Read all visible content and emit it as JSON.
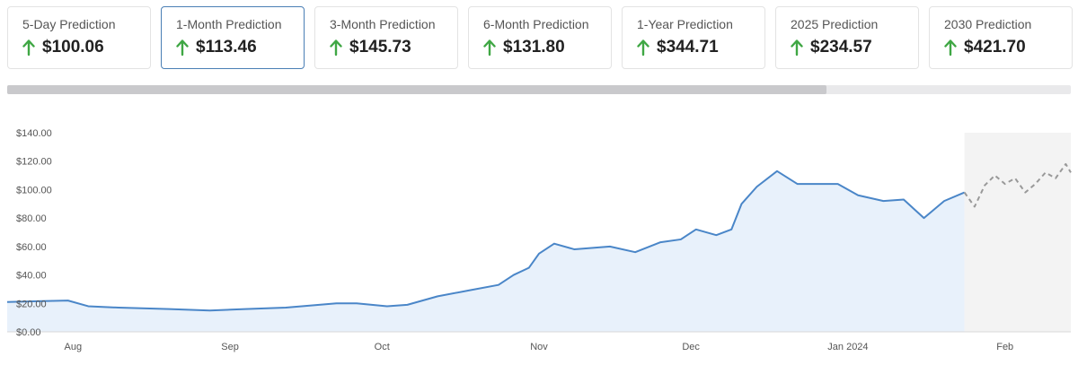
{
  "predictions": [
    {
      "label": "5-Day Prediction",
      "value": "$100.06",
      "direction": "up"
    },
    {
      "label": "1-Month Prediction",
      "value": "$113.46",
      "direction": "up",
      "selected": true
    },
    {
      "label": "3-Month Prediction",
      "value": "$145.73",
      "direction": "up"
    },
    {
      "label": "6-Month Prediction",
      "value": "$131.80",
      "direction": "up"
    },
    {
      "label": "1-Year Prediction",
      "value": "$344.71",
      "direction": "up"
    },
    {
      "label": "2025 Prediction",
      "value": "$234.57",
      "direction": "up"
    },
    {
      "label": "2030 Prediction",
      "value": "$421.70",
      "direction": "up"
    }
  ],
  "icons": {
    "up_arrow": "arrow-up-icon"
  },
  "colors": {
    "accent_arrow": "#3fa744",
    "history_line": "#4a86c8",
    "history_fill": "#e8f1fb",
    "forecast_line": "#999999",
    "forecast_fill": "#f3f3f3",
    "selected_border": "#4a7fb5"
  },
  "scrollbar": {
    "position_fraction": 0.77
  },
  "chart_data": {
    "type": "line",
    "y_tick_labels": [
      "$0.00",
      "$20.00",
      "$40.00",
      "$60.00",
      "$80.00",
      "$100.00",
      "$120.00",
      "$140.00"
    ],
    "ylim": [
      0,
      140
    ],
    "grid": false,
    "x_tick_labels": [
      "Aug",
      "Sep",
      "Oct",
      "Nov",
      "Dec",
      "Jan 2024",
      "Feb"
    ],
    "x_range": [
      "2023-07-19",
      "2024-02-14"
    ],
    "history": {
      "style": "solid",
      "x": [
        "2023-07-19",
        "2023-07-25",
        "2023-07-31",
        "2023-08-04",
        "2023-08-10",
        "2023-08-20",
        "2023-08-28",
        "2023-09-04",
        "2023-09-12",
        "2023-09-22",
        "2023-09-26",
        "2023-10-02",
        "2023-10-06",
        "2023-10-12",
        "2023-10-18",
        "2023-10-24",
        "2023-10-27",
        "2023-10-30",
        "2023-11-01",
        "2023-11-04",
        "2023-11-08",
        "2023-11-15",
        "2023-11-20",
        "2023-11-25",
        "2023-11-29",
        "2023-12-02",
        "2023-12-06",
        "2023-12-09",
        "2023-12-11",
        "2023-12-14",
        "2023-12-18",
        "2023-12-22",
        "2023-12-26",
        "2023-12-30",
        "2024-01-03",
        "2024-01-08",
        "2024-01-12",
        "2024-01-16",
        "2024-01-20",
        "2024-01-24"
      ],
      "y": [
        21,
        21.5,
        22,
        18,
        17,
        16,
        15,
        16,
        17,
        20,
        20,
        18,
        19,
        25,
        29,
        33,
        40,
        45,
        55,
        62,
        58,
        60,
        56,
        63,
        65,
        72,
        68,
        72,
        90,
        102,
        113,
        104,
        104,
        104,
        96,
        92,
        93,
        80,
        92,
        98
      ]
    },
    "forecast": {
      "style": "dashed",
      "x": [
        "2024-01-24",
        "2024-01-26",
        "2024-01-28",
        "2024-01-30",
        "2024-02-01",
        "2024-02-03",
        "2024-02-05",
        "2024-02-07",
        "2024-02-09",
        "2024-02-11",
        "2024-02-13",
        "2024-02-14"
      ],
      "y": [
        98,
        88,
        103,
        110,
        104,
        108,
        98,
        104,
        112,
        108,
        118,
        112
      ]
    }
  }
}
